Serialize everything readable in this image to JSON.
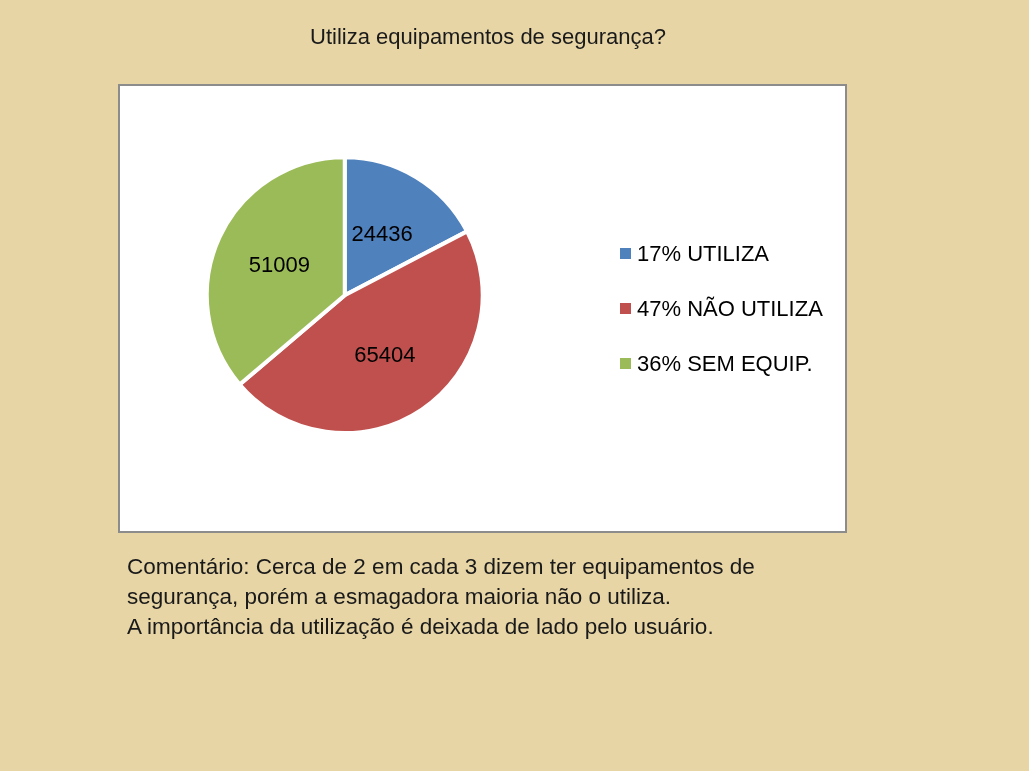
{
  "chart_data": {
    "type": "pie",
    "title": "Utiliza equipamentos de segurança?",
    "categories": [
      "17% UTILIZA",
      "47% NÃO UTILIZA",
      "36% SEM EQUIP."
    ],
    "values": [
      24436,
      65404,
      51009
    ],
    "colors": [
      "#4f81bd",
      "#c0504d",
      "#9bbb59"
    ],
    "data_labels": true,
    "legend": "right",
    "annotations": [
      "Comentário: Cerca de 2 em cada 3 dizem ter equipamentos de segurança, porém a esmagadora maioria não o utiliza.",
      "A importância da utilização é deixada de lado pelo usuário."
    ]
  }
}
